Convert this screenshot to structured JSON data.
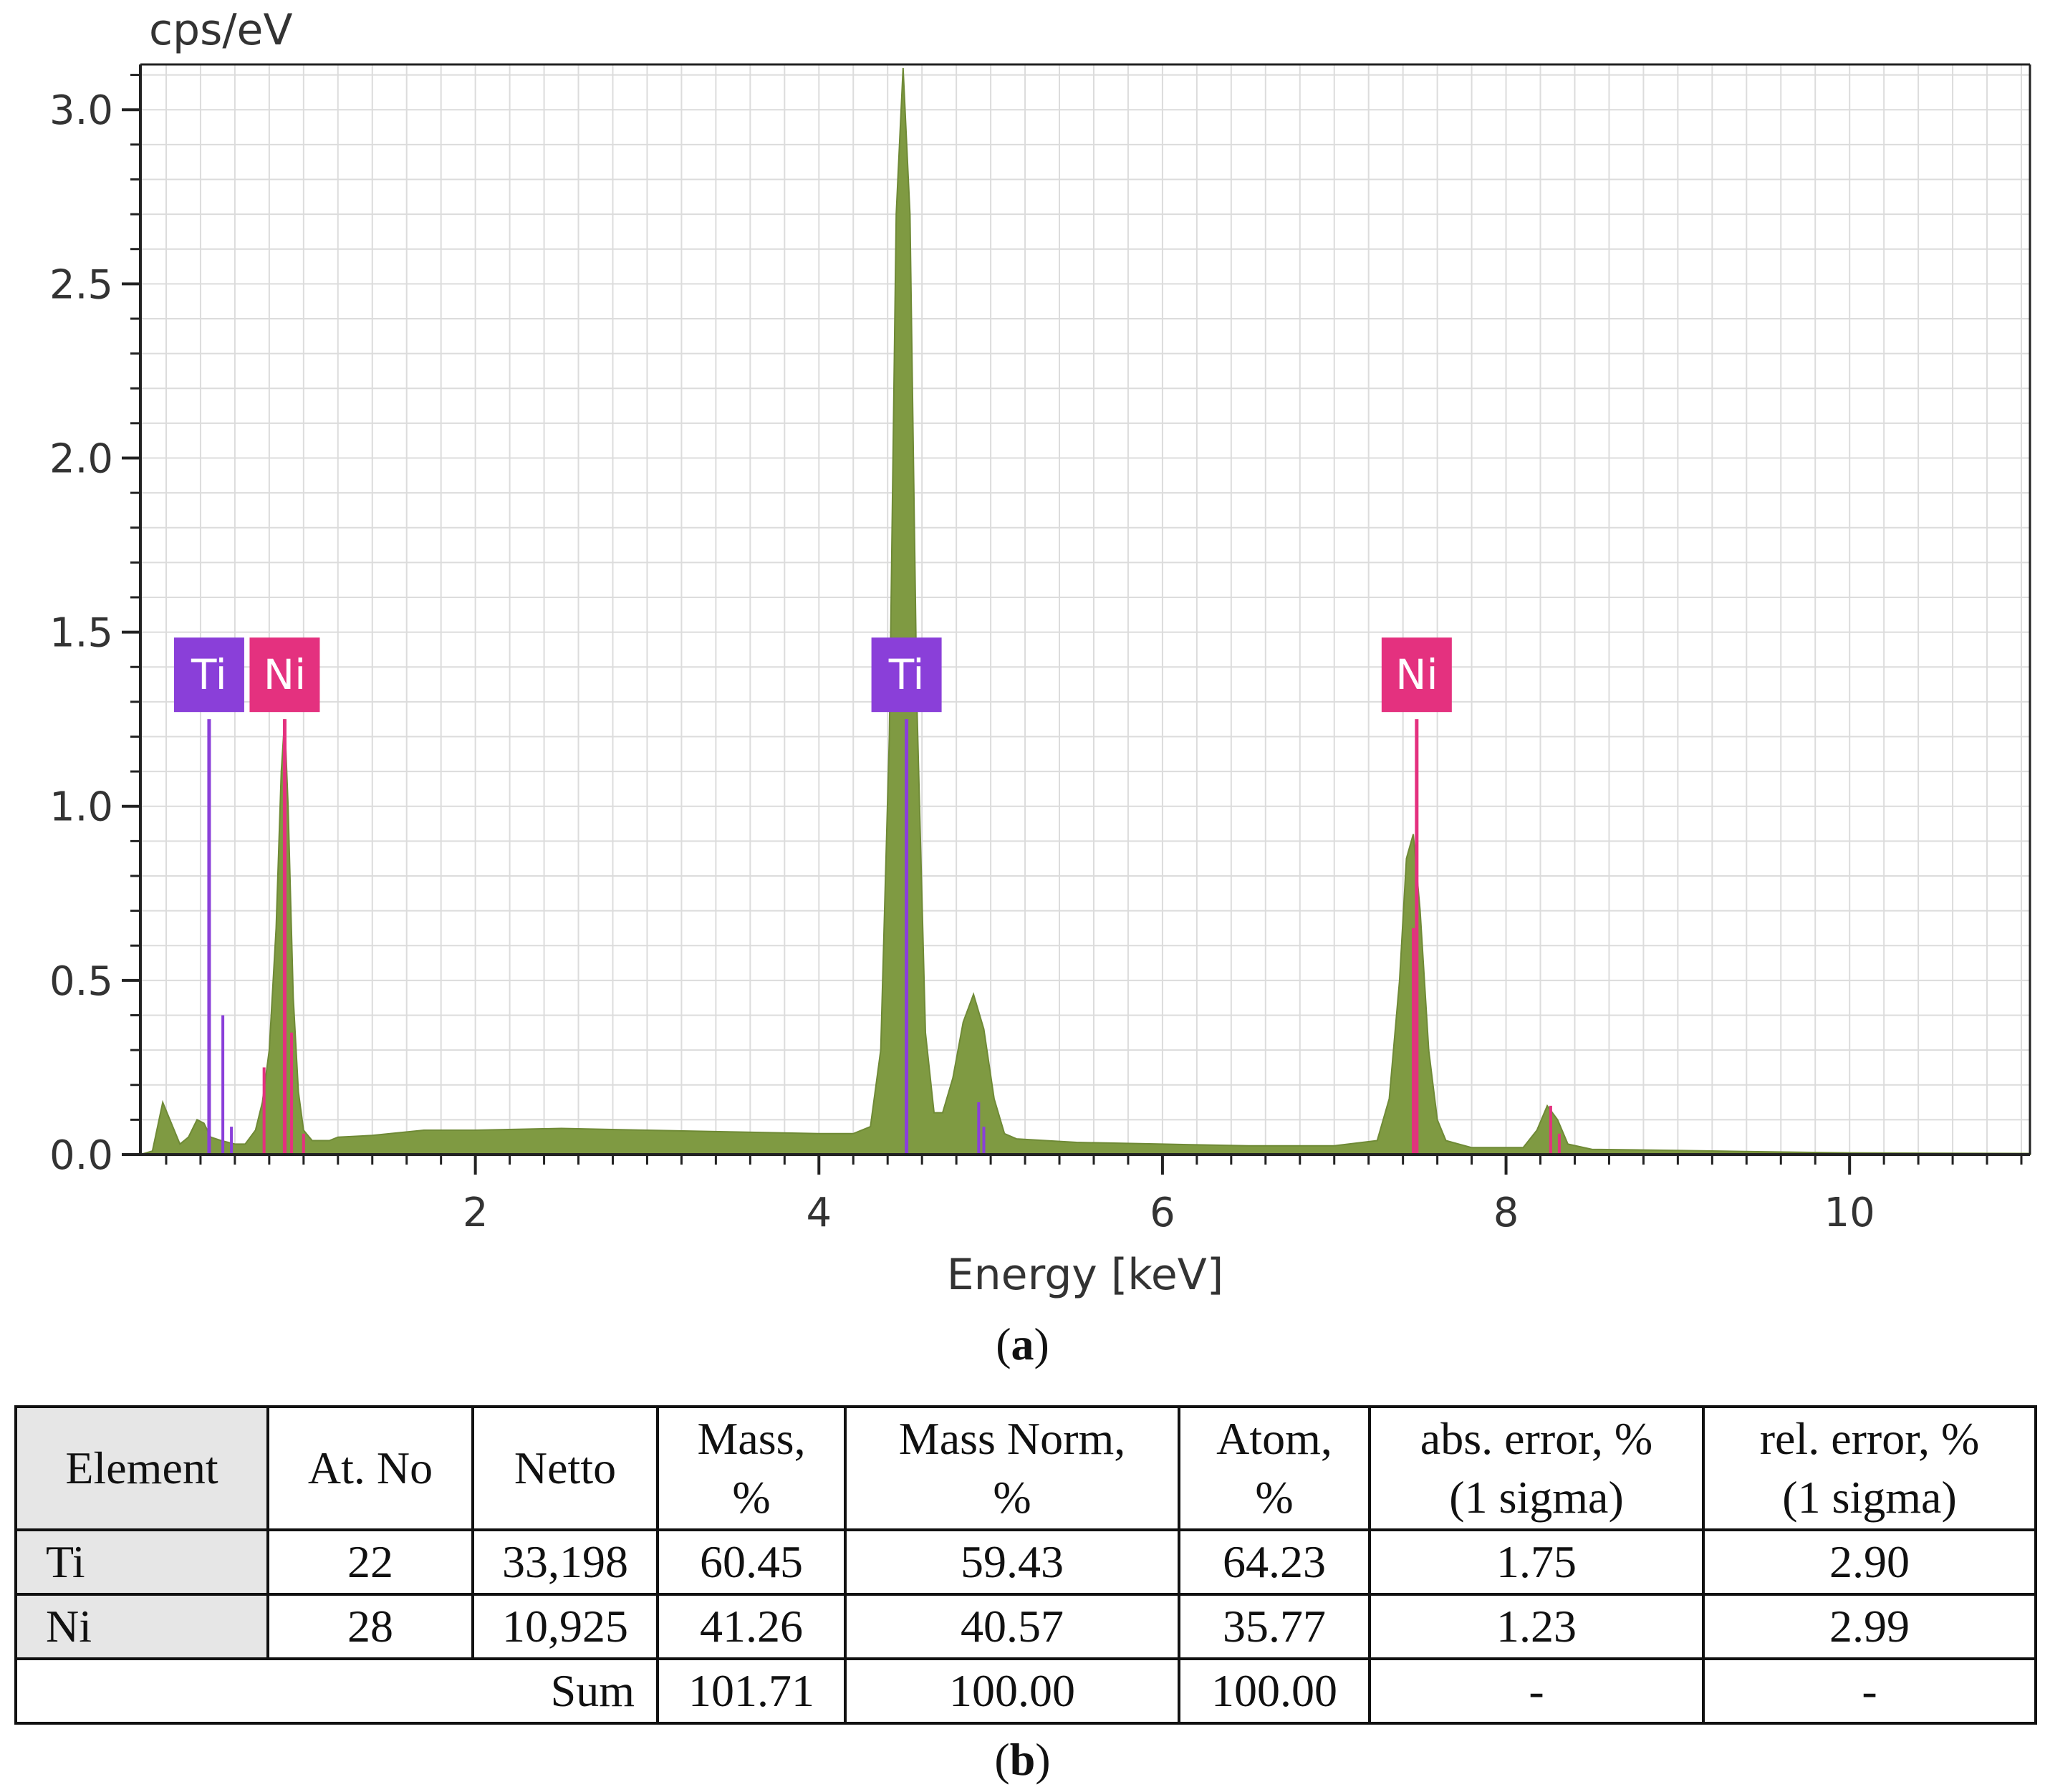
{
  "chart_data": {
    "type": "area",
    "y_axis_unit_label": "cps/eV",
    "xlabel": "Energy [keV]",
    "xlim": [
      0.05,
      11.05
    ],
    "ylim": [
      0,
      3.13
    ],
    "x_ticks": [
      2,
      4,
      6,
      8,
      10
    ],
    "x_tick_labels": [
      "2",
      "4",
      "6",
      "8",
      "10"
    ],
    "y_ticks": [
      0.0,
      0.5,
      1.0,
      1.5,
      2.0,
      2.5,
      3.0
    ],
    "y_tick_labels": [
      "0.0",
      "0.5",
      "1.0",
      "1.5",
      "2.0",
      "2.5",
      "3.0"
    ],
    "grid": true,
    "spectrum_color": "#7f9a42",
    "spectrum_points": [
      [
        0.05,
        0.0
      ],
      [
        0.12,
        0.01
      ],
      [
        0.18,
        0.15
      ],
      [
        0.23,
        0.09
      ],
      [
        0.28,
        0.03
      ],
      [
        0.33,
        0.05
      ],
      [
        0.38,
        0.1
      ],
      [
        0.42,
        0.09
      ],
      [
        0.46,
        0.05
      ],
      [
        0.52,
        0.04
      ],
      [
        0.6,
        0.03
      ],
      [
        0.66,
        0.03
      ],
      [
        0.72,
        0.07
      ],
      [
        0.76,
        0.15
      ],
      [
        0.8,
        0.3
      ],
      [
        0.84,
        0.65
      ],
      [
        0.87,
        1.1
      ],
      [
        0.89,
        1.25
      ],
      [
        0.91,
        1.0
      ],
      [
        0.94,
        0.45
      ],
      [
        0.97,
        0.18
      ],
      [
        1.0,
        0.07
      ],
      [
        1.05,
        0.04
      ],
      [
        1.15,
        0.04
      ],
      [
        1.2,
        0.05
      ],
      [
        1.4,
        0.055
      ],
      [
        1.7,
        0.07
      ],
      [
        2.0,
        0.07
      ],
      [
        2.5,
        0.075
      ],
      [
        3.0,
        0.07
      ],
      [
        3.5,
        0.065
      ],
      [
        4.0,
        0.06
      ],
      [
        4.2,
        0.06
      ],
      [
        4.3,
        0.08
      ],
      [
        4.36,
        0.3
      ],
      [
        4.41,
        1.2
      ],
      [
        4.45,
        2.7
      ],
      [
        4.49,
        3.12
      ],
      [
        4.53,
        2.7
      ],
      [
        4.57,
        1.3
      ],
      [
        4.62,
        0.35
      ],
      [
        4.67,
        0.12
      ],
      [
        4.72,
        0.12
      ],
      [
        4.78,
        0.22
      ],
      [
        4.84,
        0.38
      ],
      [
        4.9,
        0.46
      ],
      [
        4.96,
        0.36
      ],
      [
        5.02,
        0.16
      ],
      [
        5.08,
        0.06
      ],
      [
        5.15,
        0.045
      ],
      [
        5.5,
        0.035
      ],
      [
        6.0,
        0.03
      ],
      [
        6.5,
        0.025
      ],
      [
        7.0,
        0.025
      ],
      [
        7.25,
        0.04
      ],
      [
        7.32,
        0.16
      ],
      [
        7.38,
        0.5
      ],
      [
        7.42,
        0.85
      ],
      [
        7.46,
        0.92
      ],
      [
        7.5,
        0.7
      ],
      [
        7.55,
        0.3
      ],
      [
        7.6,
        0.1
      ],
      [
        7.65,
        0.04
      ],
      [
        7.8,
        0.02
      ],
      [
        8.1,
        0.02
      ],
      [
        8.18,
        0.07
      ],
      [
        8.24,
        0.14
      ],
      [
        8.3,
        0.1
      ],
      [
        8.36,
        0.03
      ],
      [
        8.5,
        0.015
      ],
      [
        9.0,
        0.012
      ],
      [
        9.5,
        0.008
      ],
      [
        10.0,
        0.005
      ],
      [
        10.5,
        0.004
      ],
      [
        11.05,
        0.003
      ]
    ],
    "element_markers": [
      {
        "element": "Ti",
        "line_energy": 0.45,
        "height": 1.25,
        "color": "#8a3fd9",
        "minor_lines": [
          {
            "energy": 0.53,
            "height": 0.4
          },
          {
            "energy": 0.58,
            "height": 0.08
          }
        ]
      },
      {
        "element": "Ni",
        "line_energy": 0.89,
        "height": 1.25,
        "color": "#e4317f",
        "minor_lines": [
          {
            "energy": 0.77,
            "height": 0.25
          },
          {
            "energy": 0.93,
            "height": 0.35
          },
          {
            "energy": 1.0,
            "height": 0.06
          }
        ]
      },
      {
        "element": "Ti",
        "line_energy": 4.51,
        "height": 1.25,
        "color": "#8a3fd9",
        "minor_lines": [
          {
            "energy": 4.93,
            "height": 0.15
          },
          {
            "energy": 4.96,
            "height": 0.08
          }
        ]
      },
      {
        "element": "Ni",
        "line_energy": 7.48,
        "height": 1.25,
        "color": "#e4317f",
        "minor_lines": [
          {
            "energy": 7.46,
            "height": 0.65
          },
          {
            "energy": 8.26,
            "height": 0.14
          },
          {
            "energy": 8.31,
            "height": 0.06
          }
        ]
      }
    ]
  },
  "captions": {
    "a_open": "(",
    "a_letter": "a",
    "a_close": ")",
    "b_open": "(",
    "b_letter": "b",
    "b_close": ")"
  },
  "table": {
    "headers": {
      "element": "Element",
      "at_no": "At. No",
      "netto": "Netto",
      "mass_line1": "Mass,",
      "mass_line2": "%",
      "mass_norm_line1": "Mass Norm,",
      "mass_norm_line2": "%",
      "atom_line1": "Atom,",
      "atom_line2": "%",
      "abs_error_line1": "abs. error, %",
      "abs_error_line2": "(1 sigma)",
      "rel_error_line1": "rel. error, %",
      "rel_error_line2": "(1 sigma)"
    },
    "rows": [
      {
        "element": "Ti",
        "at_no": "22",
        "netto": "33,198",
        "mass": "60.45",
        "mass_norm": "59.43",
        "atom": "64.23",
        "abs_error": "1.75",
        "rel_error": "2.90"
      },
      {
        "element": "Ni",
        "at_no": "28",
        "netto": "10,925",
        "mass": "41.26",
        "mass_norm": "40.57",
        "atom": "35.77",
        "abs_error": "1.23",
        "rel_error": "2.99"
      }
    ],
    "sum": {
      "label": "Sum",
      "mass": "101.71",
      "mass_norm": "100.00",
      "atom": "100.00",
      "abs_error": "-",
      "rel_error": "-"
    }
  }
}
